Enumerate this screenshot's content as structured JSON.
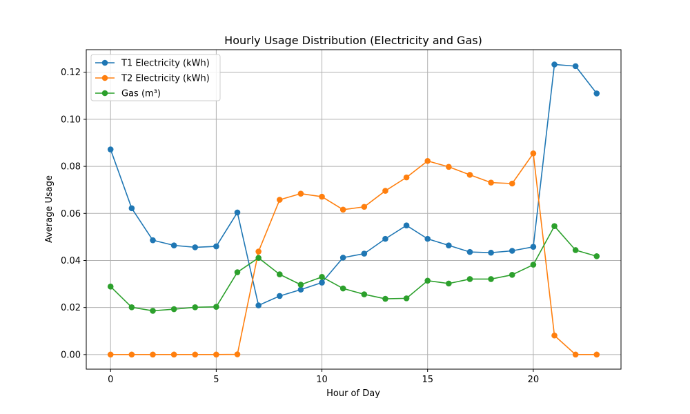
{
  "chart_data": {
    "type": "line",
    "title": "Hourly Usage Distribution (Electricity and Gas)",
    "xlabel": "Hour of Day",
    "ylabel": "Average Usage",
    "xlim": [
      -1.15,
      24.15
    ],
    "ylim": [
      -0.0062,
      0.1296
    ],
    "x_ticks": [
      0,
      5,
      10,
      15,
      20
    ],
    "y_ticks": [
      0.0,
      0.02,
      0.04,
      0.06,
      0.08,
      0.1,
      0.12
    ],
    "y_tick_labels": [
      "0.00",
      "0.02",
      "0.04",
      "0.06",
      "0.08",
      "0.10",
      "0.12"
    ],
    "grid": true,
    "legend_position": "top-left",
    "x": [
      0,
      1,
      2,
      3,
      4,
      5,
      6,
      7,
      8,
      9,
      10,
      11,
      12,
      13,
      14,
      15,
      16,
      17,
      18,
      19,
      20,
      21,
      22,
      23
    ],
    "series": [
      {
        "name": "T1 Electricity (kWh)",
        "color": "#1f77b4",
        "values": [
          0.0872,
          0.0622,
          0.0486,
          0.0464,
          0.0456,
          0.046,
          0.0604,
          0.0209,
          0.0249,
          0.0276,
          0.0306,
          0.0412,
          0.0429,
          0.0492,
          0.0549,
          0.0492,
          0.0464,
          0.0436,
          0.0433,
          0.0441,
          0.0458,
          0.1233,
          0.1226,
          0.111
        ]
      },
      {
        "name": "T2 Electricity (kWh)",
        "color": "#ff7f0e",
        "values": [
          0.0,
          0.0,
          0.0,
          0.0,
          0.0,
          0.0,
          0.0001,
          0.0438,
          0.0658,
          0.0684,
          0.0671,
          0.0616,
          0.0628,
          0.0696,
          0.0753,
          0.0823,
          0.0798,
          0.0764,
          0.0731,
          0.0727,
          0.0855,
          0.0081,
          0.0,
          0.0
        ]
      },
      {
        "name": "Gas (m³)",
        "color": "#2ca02c",
        "values": [
          0.0289,
          0.0201,
          0.0186,
          0.0193,
          0.0201,
          0.0203,
          0.035,
          0.0411,
          0.0341,
          0.0297,
          0.033,
          0.0281,
          0.0256,
          0.0237,
          0.0239,
          0.0314,
          0.0302,
          0.0321,
          0.0321,
          0.0339,
          0.0382,
          0.0546,
          0.0444,
          0.0418
        ]
      }
    ]
  }
}
